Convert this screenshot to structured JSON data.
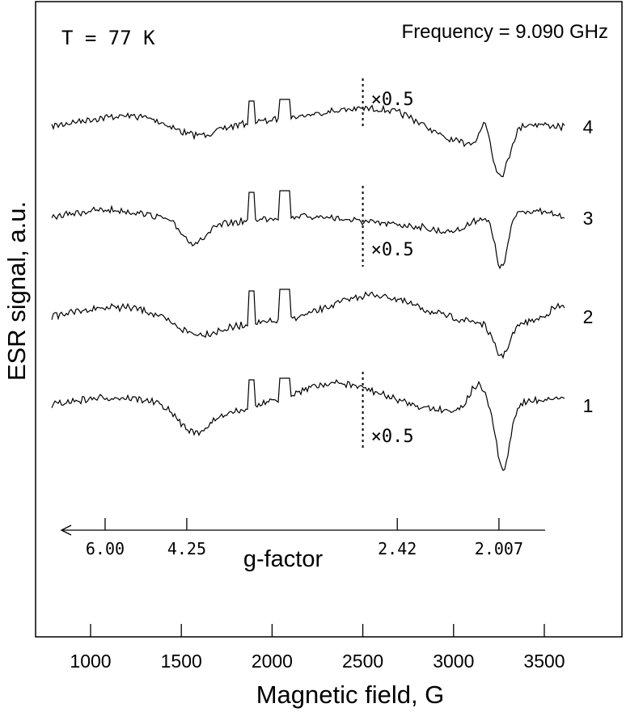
{
  "chart_data": {
    "type": "line",
    "temperature_label": "T = 77 K",
    "frequency_label": "Frequency = 9.090 GHz",
    "xlabel": "Magnetic field, G",
    "ylabel": "ESR signal, a.u.",
    "xlim": [
      700,
      3900
    ],
    "x_ticks": [
      1000,
      1500,
      2000,
      2500,
      3000,
      3500
    ],
    "scale_break_field": 2500,
    "scale_label": "×0.5",
    "gfactor_axis": {
      "label": "g-factor",
      "ticks": [
        {
          "label": "6.00",
          "field": 1080
        },
        {
          "label": "4.25",
          "field": 1530
        },
        {
          "label": "2.42",
          "field": 2690
        },
        {
          "label": "2.007",
          "field": 3250
        }
      ]
    },
    "series": [
      {
        "name": "4",
        "scaled": true
      },
      {
        "name": "3",
        "scaled": true
      },
      {
        "name": "2",
        "scaled": false
      },
      {
        "name": "1",
        "scaled": true
      }
    ]
  }
}
